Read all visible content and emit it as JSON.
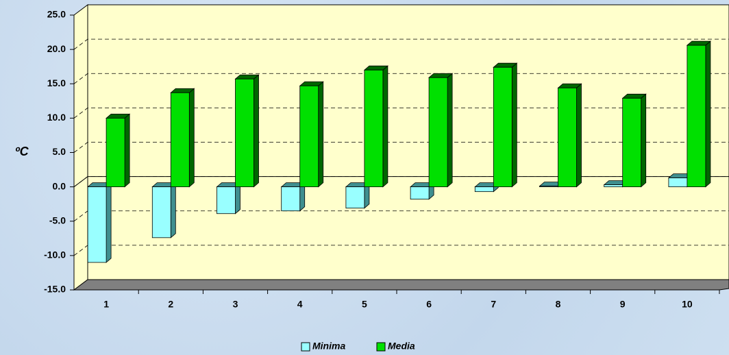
{
  "chart_data": {
    "type": "bar3d",
    "y_label": "ºC",
    "categories": [
      "1",
      "2",
      "3",
      "4",
      "5",
      "6",
      "7",
      "8",
      "9",
      "10"
    ],
    "series": [
      {
        "name": "Minima",
        "color": "#99ffff",
        "side_color": "#3f8f8f",
        "values": [
          -11,
          -7.4,
          -3.9,
          -3.5,
          -3.1,
          -1.8,
          -0.7,
          0.1,
          0.3,
          1.3
        ]
      },
      {
        "name": "Media",
        "color": "#00e000",
        "side_color": "#006600",
        "values": [
          10,
          13.7,
          15.7,
          14.7,
          17,
          15.9,
          17.4,
          14.4,
          12.9,
          20.6
        ]
      }
    ],
    "ylim": [
      -15,
      25
    ],
    "yticks": [
      {
        "value": -15,
        "label": "-15.0"
      },
      {
        "value": -10,
        "label": "-10.0"
      },
      {
        "value": -5,
        "label": "-5.0"
      },
      {
        "value": 0,
        "label": "0.0"
      },
      {
        "value": 5,
        "label": "5.0"
      },
      {
        "value": 10,
        "label": "10.0"
      },
      {
        "value": 15,
        "label": "15.0"
      },
      {
        "value": 20,
        "label": "20.0"
      },
      {
        "value": 25,
        "label": "25.0"
      }
    ],
    "grid": true,
    "legend": "bottom",
    "plot_color": "#ffffcc",
    "floor_color": "#808080"
  }
}
